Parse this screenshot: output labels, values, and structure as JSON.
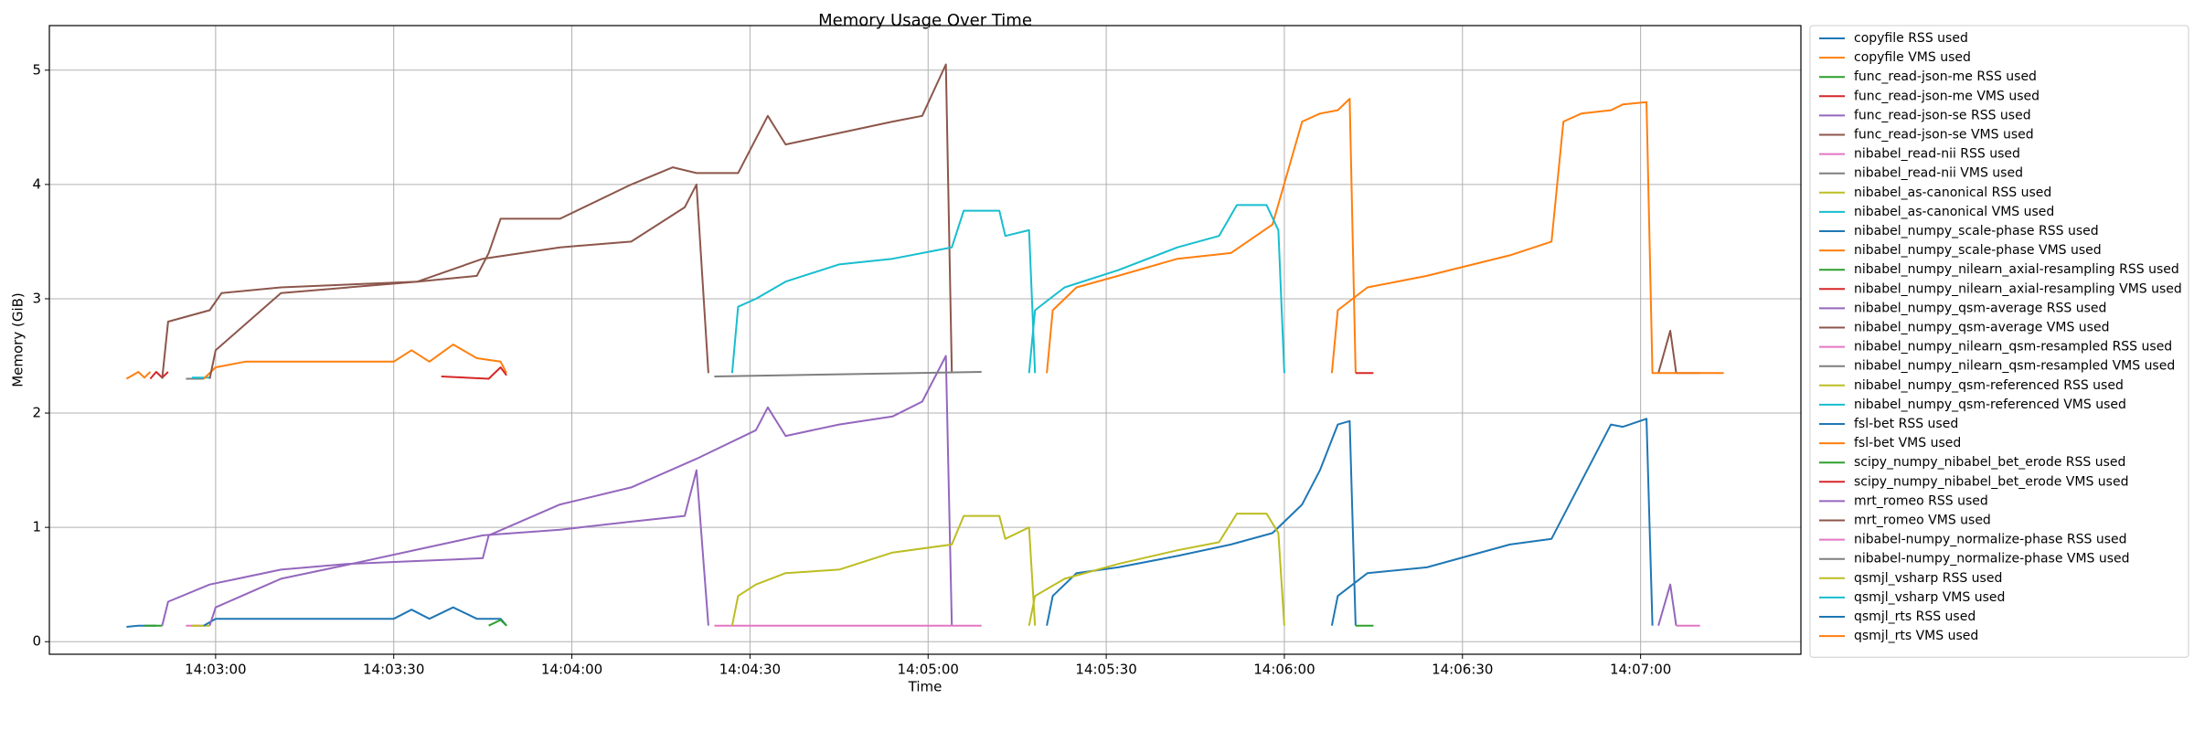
{
  "chart_data": {
    "type": "line",
    "title": "Memory Usage Over Time",
    "x_label": "Time",
    "y_label": "Memory (GiB)",
    "xlim": [
      "14:02:32",
      "14:07:27"
    ],
    "xticks": [
      "14:03:00",
      "14:03:30",
      "14:04:00",
      "14:04:30",
      "14:05:00",
      "14:05:30",
      "14:06:00",
      "14:06:30",
      "14:07:00"
    ],
    "ylim": [
      -0.11,
      5.39
    ],
    "yticks": [
      0,
      1,
      2,
      3,
      4,
      5
    ],
    "grid": true,
    "legend": "right",
    "series": [
      {
        "name": "copyfile RSS used",
        "color": "#1f77b4",
        "x": [
          "14:02:45",
          "14:02:47",
          "14:02:50"
        ],
        "values": [
          0.13,
          0.14,
          0.14
        ]
      },
      {
        "name": "copyfile VMS used",
        "color": "#ff7f0e",
        "x": [
          "14:02:45",
          "14:02:47",
          "14:02:48",
          "14:02:49"
        ],
        "values": [
          2.3,
          2.36,
          2.31,
          2.36
        ]
      },
      {
        "name": "func_read-json-me RSS used",
        "color": "#2ca02c",
        "x": [
          "14:02:48",
          "14:02:51"
        ],
        "values": [
          0.14,
          0.14
        ]
      },
      {
        "name": "func_read-json-me VMS used",
        "color": "#d62728",
        "x": [
          "14:02:49",
          "14:02:50",
          "14:02:51",
          "14:02:52"
        ],
        "values": [
          2.3,
          2.36,
          2.31,
          2.36
        ]
      },
      {
        "name": "func_read-json-se RSS used",
        "color": "#9467bd",
        "x": [
          "14:02:51",
          "14:02:52",
          "14:02:59",
          "14:03:11",
          "14:03:22",
          "14:03:45",
          "14:03:46",
          "14:03:58",
          "14:04:10",
          "14:04:21",
          "14:04:31",
          "14:04:33",
          "14:04:36",
          "14:04:45",
          "14:04:54",
          "14:04:59",
          "14:05:03",
          "14:05:04"
        ],
        "values": [
          0.14,
          0.35,
          0.5,
          0.63,
          0.68,
          0.73,
          0.93,
          1.2,
          1.35,
          1.6,
          1.85,
          2.05,
          1.8,
          1.9,
          1.97,
          2.1,
          2.5,
          0.14
        ]
      },
      {
        "name": "func_read-json-se VMS used",
        "color": "#8c564b",
        "x": [
          "14:02:51",
          "14:02:52",
          "14:02:59",
          "14:03:01",
          "14:03:11",
          "14:03:34",
          "14:03:44",
          "14:03:46",
          "14:03:48",
          "14:03:58",
          "14:04:10",
          "14:04:17",
          "14:04:21",
          "14:04:28",
          "14:04:31",
          "14:04:33",
          "14:04:36",
          "14:04:45",
          "14:04:54",
          "14:04:59",
          "14:05:03",
          "14:05:04"
        ],
        "values": [
          2.3,
          2.8,
          2.9,
          3.05,
          3.1,
          3.15,
          3.2,
          3.4,
          3.7,
          3.7,
          4.0,
          4.15,
          4.1,
          4.1,
          4.4,
          4.6,
          4.35,
          4.45,
          4.55,
          4.6,
          5.05,
          2.35
        ]
      },
      {
        "name": "nibabel_read-nii RSS used",
        "color": "#e377c2",
        "x": [
          "14:02:55",
          "14:02:58"
        ],
        "values": [
          0.14,
          0.14
        ]
      },
      {
        "name": "nibabel_read-nii VMS used",
        "color": "#7f7f7f",
        "x": [
          "14:02:55",
          "14:02:58"
        ],
        "values": [
          2.3,
          2.3
        ]
      },
      {
        "name": "nibabel_as-canonical RSS used",
        "color": "#bcbd22",
        "x": [
          "14:02:56",
          "14:02:59"
        ],
        "values": [
          0.14,
          0.14
        ]
      },
      {
        "name": "nibabel_as-canonical VMS used",
        "color": "#17becf",
        "x": [
          "14:02:56",
          "14:02:59"
        ],
        "values": [
          2.31,
          2.31
        ]
      },
      {
        "name": "nibabel_numpy_scale-phase RSS used",
        "color": "#1f77b4",
        "x": [
          "14:02:58",
          "14:03:00",
          "14:03:05",
          "14:03:30",
          "14:03:33",
          "14:03:36",
          "14:03:40",
          "14:03:44",
          "14:03:48",
          "14:03:49"
        ],
        "values": [
          0.14,
          0.2,
          0.2,
          0.2,
          0.28,
          0.2,
          0.3,
          0.2,
          0.2,
          0.14
        ]
      },
      {
        "name": "nibabel_numpy_scale-phase VMS used",
        "color": "#ff7f0e",
        "x": [
          "14:02:58",
          "14:03:00",
          "14:03:05",
          "14:03:30",
          "14:03:33",
          "14:03:36",
          "14:03:40",
          "14:03:44",
          "14:03:48",
          "14:03:49"
        ],
        "values": [
          2.3,
          2.4,
          2.45,
          2.45,
          2.55,
          2.45,
          2.6,
          2.48,
          2.45,
          2.35
        ]
      },
      {
        "name": "nibabel_numpy_nilearn_axial-resampling RSS used",
        "color": "#2ca02c",
        "x": [
          "14:03:46",
          "14:03:48",
          "14:03:49"
        ],
        "values": [
          0.14,
          0.19,
          0.14
        ]
      },
      {
        "name": "nibabel_numpy_nilearn_axial-resampling VMS used",
        "color": "#d62728",
        "x": [
          "14:03:38",
          "14:03:46",
          "14:03:48",
          "14:03:49"
        ],
        "values": [
          2.32,
          2.3,
          2.4,
          2.33
        ]
      },
      {
        "name": "nibabel_numpy_qsm-average RSS used",
        "color": "#9467bd",
        "x": [
          "14:02:59",
          "14:03:00",
          "14:03:11",
          "14:03:22",
          "14:03:45",
          "14:03:58",
          "14:04:10",
          "14:04:19",
          "14:04:21",
          "14:04:23"
        ],
        "values": [
          0.14,
          0.3,
          0.55,
          0.67,
          0.93,
          0.98,
          1.05,
          1.1,
          1.5,
          0.14
        ]
      },
      {
        "name": "nibabel_numpy_qsm-average VMS used",
        "color": "#8c564b",
        "x": [
          "14:02:59",
          "14:03:00",
          "14:03:11",
          "14:03:34",
          "14:03:45",
          "14:03:58",
          "14:04:10",
          "14:04:19",
          "14:04:21",
          "14:04:23"
        ],
        "values": [
          2.3,
          2.55,
          3.05,
          3.15,
          3.35,
          3.45,
          3.5,
          3.8,
          4.0,
          2.35
        ]
      },
      {
        "name": "nibabel_numpy_nilearn_qsm-resampled RSS used",
        "color": "#e377c2",
        "x": [
          "14:04:24",
          "14:05:09"
        ],
        "values": [
          0.14,
          0.14
        ]
      },
      {
        "name": "nibabel_numpy_nilearn_qsm-resampled VMS used",
        "color": "#7f7f7f",
        "x": [
          "14:04:24",
          "14:05:09"
        ],
        "values": [
          2.32,
          2.36
        ]
      },
      {
        "name": "nibabel_numpy_qsm-referenced RSS used",
        "color": "#bcbd22",
        "x": [
          "14:04:27",
          "14:04:28",
          "14:04:31",
          "14:04:36",
          "14:04:45",
          "14:04:54",
          "14:05:04",
          "14:05:06",
          "14:05:12",
          "14:05:13",
          "14:05:17",
          "14:05:18"
        ],
        "values": [
          0.14,
          0.4,
          0.5,
          0.6,
          0.63,
          0.78,
          0.85,
          1.1,
          1.1,
          0.9,
          1.0,
          0.14
        ]
      },
      {
        "name": "nibabel_numpy_qsm-referenced VMS used",
        "color": "#17becf",
        "x": [
          "14:04:27",
          "14:04:28",
          "14:04:31",
          "14:04:36",
          "14:04:45",
          "14:04:54",
          "14:05:04",
          "14:05:06",
          "14:05:12",
          "14:05:13",
          "14:05:17",
          "14:05:18"
        ],
        "values": [
          2.35,
          2.93,
          3.0,
          3.15,
          3.3,
          3.35,
          3.45,
          3.77,
          3.77,
          3.55,
          3.6,
          2.35
        ]
      },
      {
        "name": "fsl-bet RSS used",
        "color": "#1f77b4",
        "x": [
          "14:05:20",
          "14:05:21",
          "14:05:25",
          "14:05:32",
          "14:05:42",
          "14:05:51",
          "14:05:58",
          "14:06:03",
          "14:06:06",
          "14:06:09",
          "14:06:11",
          "14:06:12"
        ],
        "values": [
          0.14,
          0.4,
          0.6,
          0.65,
          0.75,
          0.85,
          0.95,
          1.2,
          1.5,
          1.9,
          1.93,
          0.14
        ]
      },
      {
        "name": "fsl-bet VMS used",
        "color": "#ff7f0e",
        "x": [
          "14:05:20",
          "14:05:21",
          "14:05:25",
          "14:05:32",
          "14:05:42",
          "14:05:51",
          "14:05:58",
          "14:06:03",
          "14:06:06",
          "14:06:09",
          "14:06:11",
          "14:06:12"
        ],
        "values": [
          2.35,
          2.9,
          3.1,
          3.2,
          3.35,
          3.4,
          3.65,
          4.55,
          4.62,
          4.65,
          4.75,
          2.35
        ]
      },
      {
        "name": "scipy_numpy_nibabel_bet_erode RSS used",
        "color": "#2ca02c",
        "x": [
          "14:06:12",
          "14:06:15"
        ],
        "values": [
          0.14,
          0.14
        ]
      },
      {
        "name": "scipy_numpy_nibabel_bet_erode VMS used",
        "color": "#d62728",
        "x": [
          "14:06:12",
          "14:06:15"
        ],
        "values": [
          2.35,
          2.35
        ]
      },
      {
        "name": "mrt_romeo RSS used",
        "color": "#9467bd",
        "x": [
          "14:07:03",
          "14:07:05",
          "14:07:06"
        ],
        "values": [
          0.14,
          0.5,
          0.14
        ]
      },
      {
        "name": "mrt_romeo VMS used",
        "color": "#8c564b",
        "x": [
          "14:07:03",
          "14:07:05",
          "14:07:06"
        ],
        "values": [
          2.35,
          2.72,
          2.35
        ]
      },
      {
        "name": "nibabel-numpy_normalize-phase RSS used",
        "color": "#e377c2",
        "x": [
          "14:07:06",
          "14:07:10"
        ],
        "values": [
          0.14,
          0.14
        ]
      },
      {
        "name": "nibabel-numpy_normalize-phase VMS used",
        "color": "#7f7f7f",
        "x": [
          "14:07:06",
          "14:07:10"
        ],
        "values": [
          2.35,
          2.35
        ]
      },
      {
        "name": "qsmjl_vsharp RSS used",
        "color": "#bcbd22",
        "x": [
          "14:05:17",
          "14:05:18",
          "14:05:23",
          "14:05:32",
          "14:05:42",
          "14:05:49",
          "14:05:52",
          "14:05:57",
          "14:05:59",
          "14:06:00"
        ],
        "values": [
          0.14,
          0.4,
          0.55,
          0.68,
          0.8,
          0.87,
          1.12,
          1.12,
          0.95,
          0.14
        ]
      },
      {
        "name": "qsmjl_vsharp VMS used",
        "color": "#17becf",
        "x": [
          "14:05:17",
          "14:05:18",
          "14:05:23",
          "14:05:32",
          "14:05:42",
          "14:05:49",
          "14:05:52",
          "14:05:57",
          "14:05:59",
          "14:06:00"
        ],
        "values": [
          2.35,
          2.9,
          3.1,
          3.25,
          3.45,
          3.55,
          3.82,
          3.82,
          3.6,
          2.35
        ]
      },
      {
        "name": "qsmjl_rts RSS used",
        "color": "#1f77b4",
        "x": [
          "14:06:08",
          "14:06:09",
          "14:06:14",
          "14:06:24",
          "14:06:38",
          "14:06:45",
          "14:06:50",
          "14:06:55",
          "14:06:57",
          "14:07:01",
          "14:07:02"
        ],
        "values": [
          0.14,
          0.4,
          0.6,
          0.65,
          0.85,
          0.9,
          1.4,
          1.9,
          1.88,
          1.95,
          0.14
        ]
      },
      {
        "name": "qsmjl_rts VMS used",
        "color": "#ff7f0e",
        "x": [
          "14:06:08",
          "14:06:09",
          "14:06:14",
          "14:06:24",
          "14:06:38",
          "14:06:45",
          "14:06:47",
          "14:06:50",
          "14:06:55",
          "14:06:57",
          "14:07:01",
          "14:07:02",
          "14:07:14"
        ],
        "values": [
          2.35,
          2.9,
          3.1,
          3.2,
          3.38,
          3.5,
          4.55,
          4.62,
          4.65,
          4.7,
          4.72,
          2.35,
          2.35
        ]
      }
    ]
  }
}
